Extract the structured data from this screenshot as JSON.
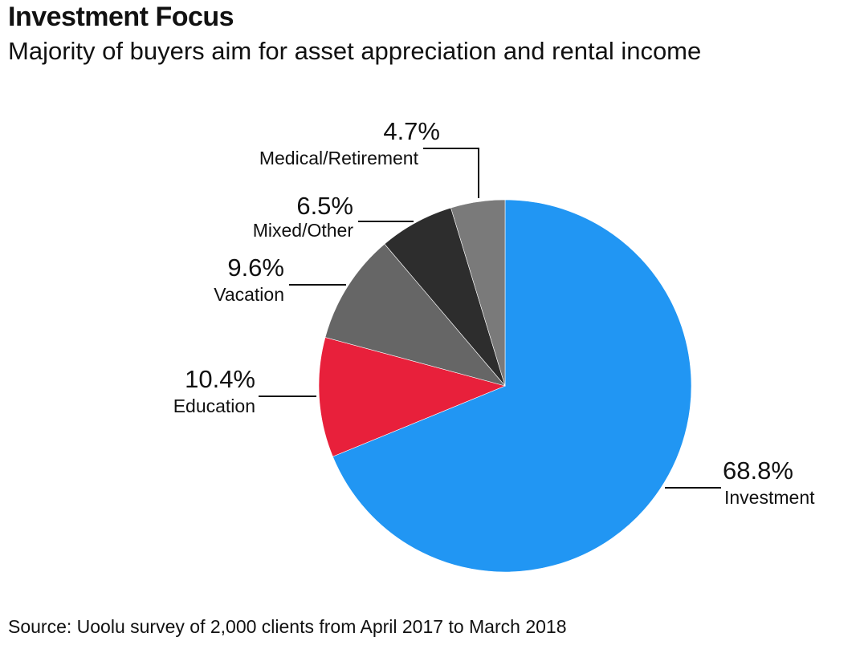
{
  "header": {
    "title": "Investment Focus",
    "subtitle": "Majority of buyers aim for asset appreciation and rental income"
  },
  "footer": {
    "source": "Source: Uoolu survey of 2,000 clients from April 2017 to March 2018"
  },
  "chart_data": {
    "type": "pie",
    "title": "Investment Focus",
    "subtitle": "Majority of buyers aim for asset appreciation and rental income",
    "start": "12 o'clock",
    "direction": "clockwise",
    "slices": [
      {
        "label": "Investment",
        "value": 68.8,
        "display": "68.8%",
        "color": "#2196f3"
      },
      {
        "label": "Education",
        "value": 10.4,
        "display": "10.4%",
        "color": "#e8203b"
      },
      {
        "label": "Vacation",
        "value": 9.6,
        "display": "9.6%",
        "color": "#666666"
      },
      {
        "label": "Mixed/Other",
        "value": 6.5,
        "display": "6.5%",
        "color": "#2d2d2d"
      },
      {
        "label": "Medical/Retirement",
        "value": 4.7,
        "display": "4.7%",
        "color": "#7a7a7a"
      }
    ]
  }
}
